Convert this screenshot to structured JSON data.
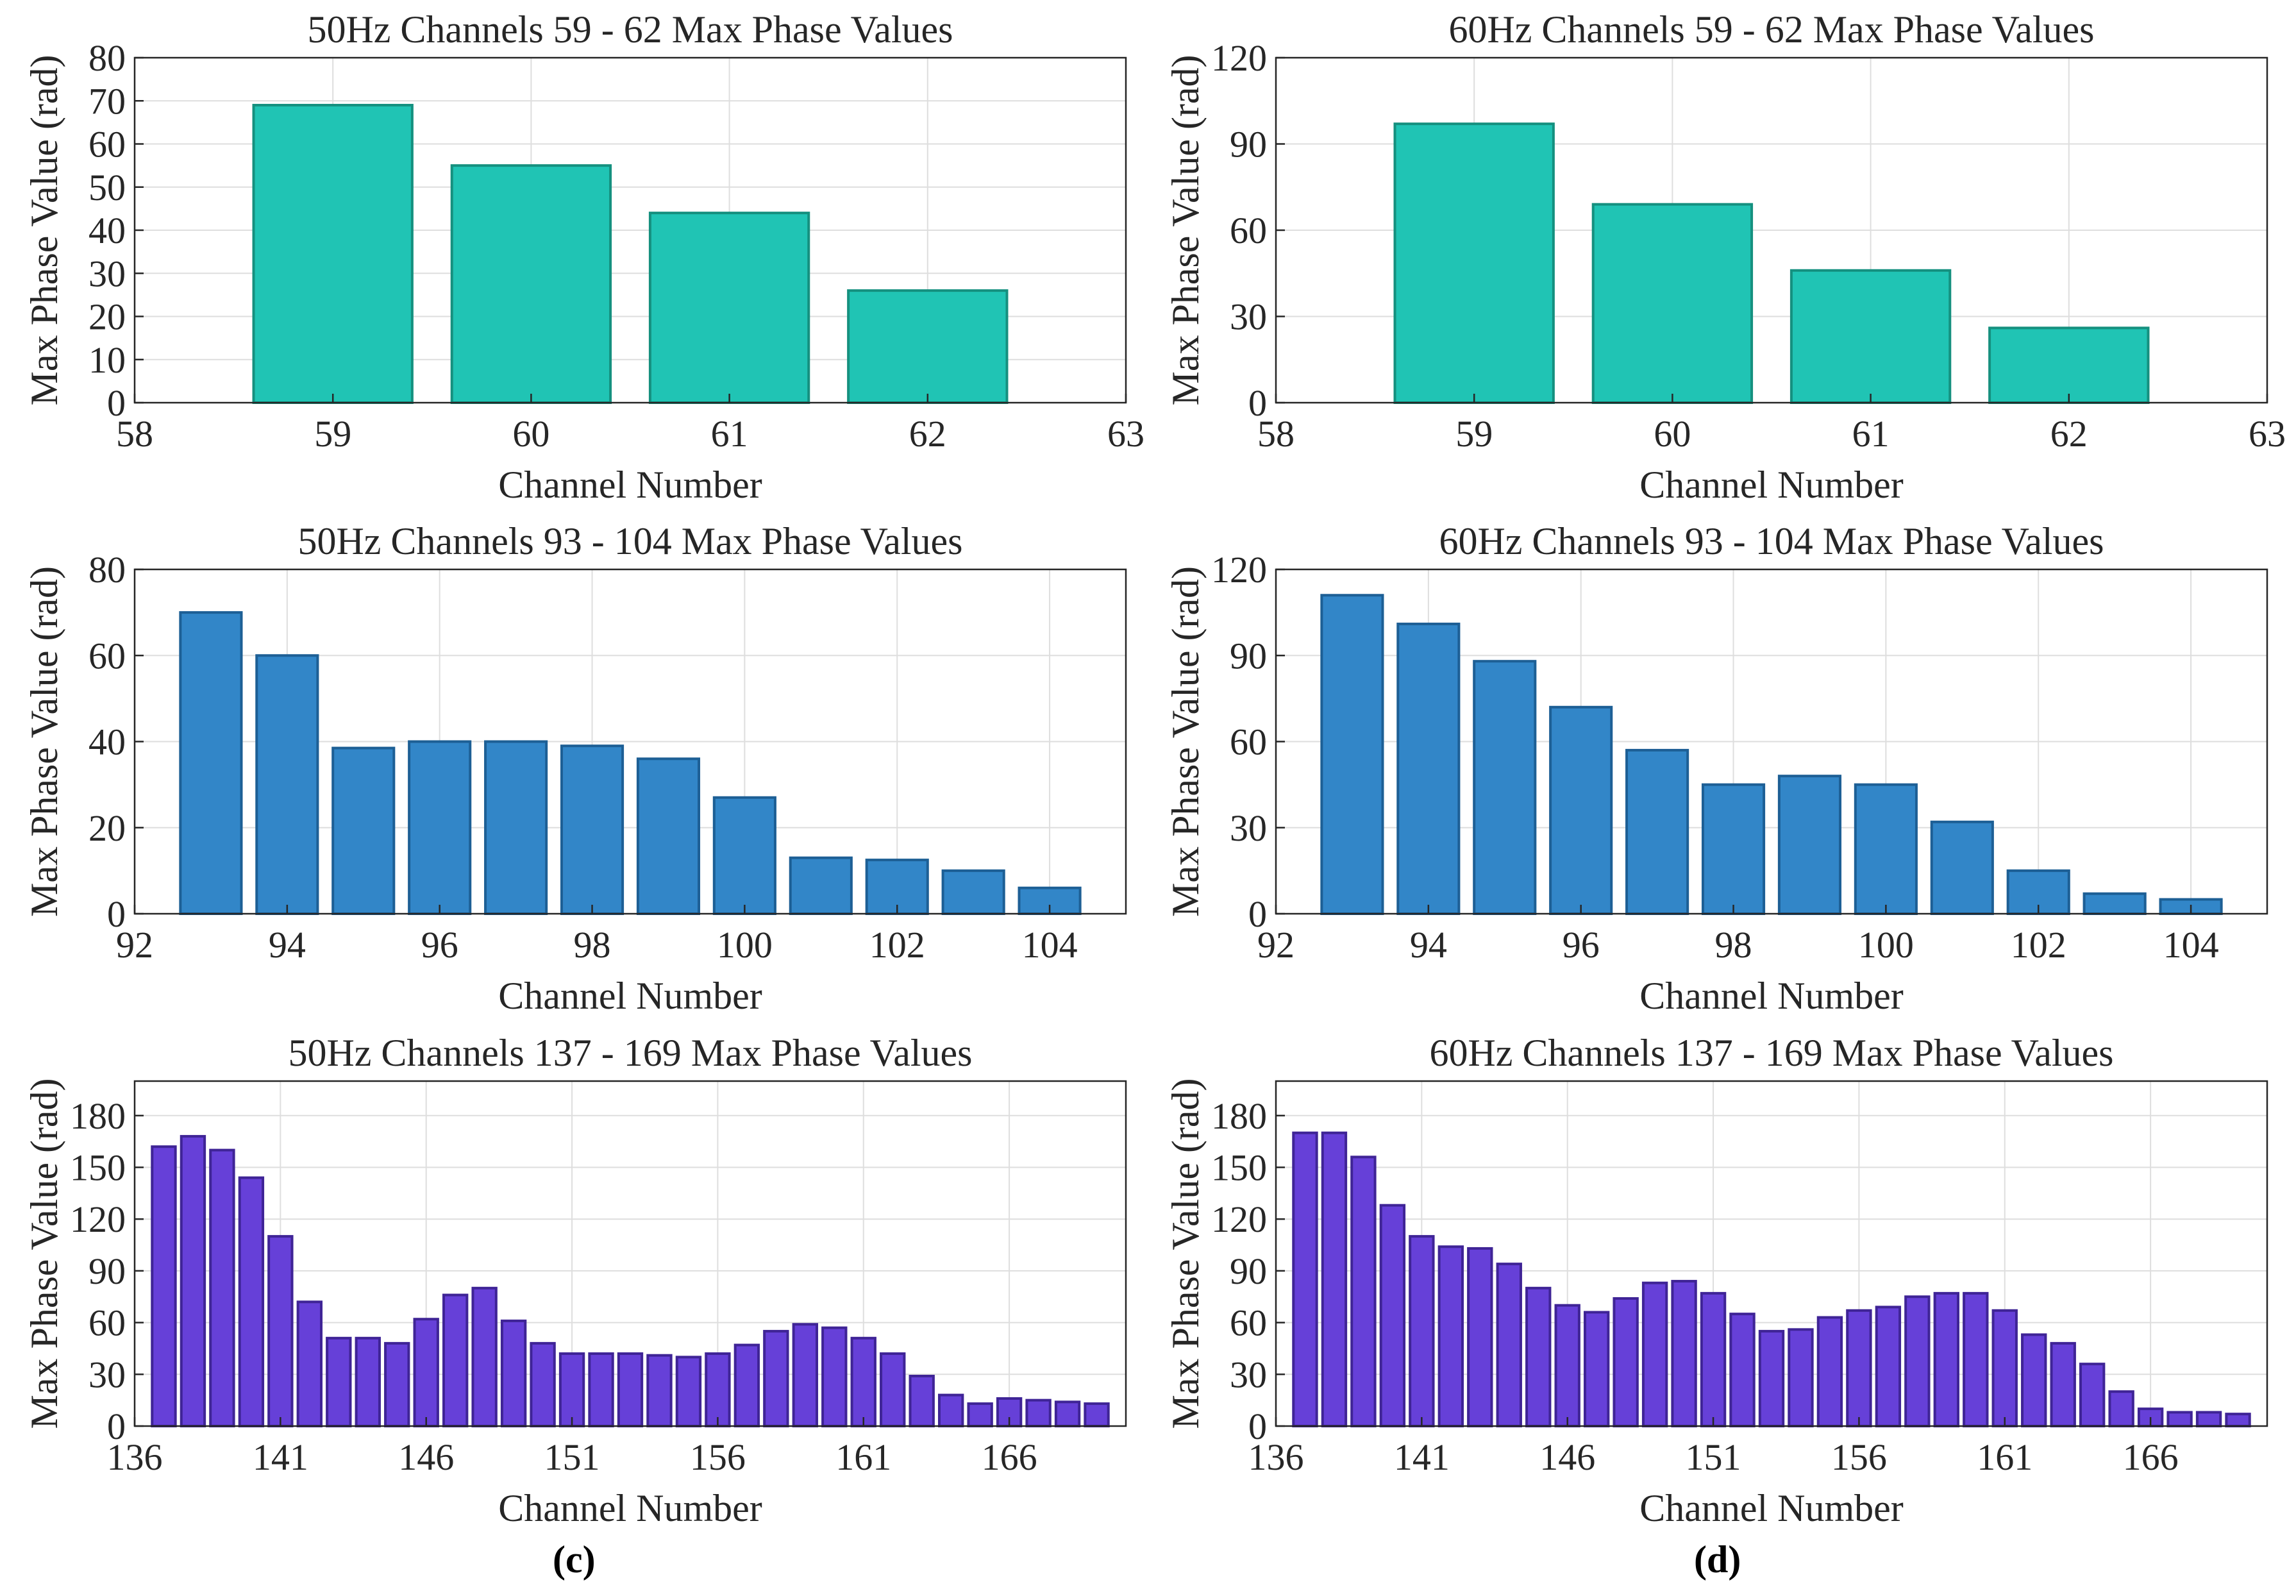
{
  "panel_labels": [
    "(c)",
    "(d)"
  ],
  "chart_data": [
    {
      "type": "bar",
      "title": "50Hz Channels 59 - 62 Max Phase Values",
      "xlabel": "Channel Number",
      "ylabel": "Max Phase Value (rad)",
      "x": [
        59,
        60,
        61,
        62
      ],
      "values": [
        69,
        55,
        44,
        26
      ],
      "xlim": [
        58,
        63
      ],
      "ylim": [
        0,
        80
      ],
      "xticks": [
        58,
        59,
        60,
        61,
        62,
        63
      ],
      "yticks": [
        0,
        10,
        20,
        30,
        40,
        50,
        60,
        70,
        80
      ],
      "grid": true,
      "color": "#20c4b4",
      "edge_color": "#15907f"
    },
    {
      "type": "bar",
      "title": "60Hz Channels 59 - 62 Max Phase Values",
      "xlabel": "Channel Number",
      "ylabel": "Max Phase Value (rad)",
      "x": [
        59,
        60,
        61,
        62
      ],
      "values": [
        97,
        69,
        46,
        26
      ],
      "xlim": [
        58,
        63
      ],
      "ylim": [
        0,
        120
      ],
      "xticks": [
        58,
        59,
        60,
        61,
        62,
        63
      ],
      "yticks": [
        0,
        30,
        60,
        90,
        120
      ],
      "grid": true,
      "color": "#20c4b4",
      "edge_color": "#15907f"
    },
    {
      "type": "bar",
      "title": "50Hz Channels 93 - 104 Max Phase Values",
      "xlabel": "Channel Number",
      "ylabel": "Max Phase Value (rad)",
      "x": [
        93,
        94,
        95,
        96,
        97,
        98,
        99,
        100,
        101,
        102,
        103,
        104
      ],
      "values": [
        70,
        60,
        38.5,
        40,
        40,
        39,
        36,
        27,
        13,
        12.5,
        10,
        6
      ],
      "xlim": [
        92,
        105
      ],
      "ylim": [
        0,
        80
      ],
      "xticks": [
        92,
        94,
        96,
        98,
        100,
        102,
        104
      ],
      "yticks": [
        0,
        20,
        40,
        60,
        80
      ],
      "grid": true,
      "color": "#3286c8",
      "edge_color": "#1d5f95"
    },
    {
      "type": "bar",
      "title": "60Hz Channels 93 - 104 Max Phase Values",
      "xlabel": "Channel Number",
      "ylabel": "Max Phase Value (rad)",
      "x": [
        93,
        94,
        95,
        96,
        97,
        98,
        99,
        100,
        101,
        102,
        103,
        104
      ],
      "values": [
        111,
        101,
        88,
        72,
        57,
        45,
        48,
        45,
        32,
        15,
        7,
        5
      ],
      "xlim": [
        92,
        105
      ],
      "ylim": [
        0,
        120
      ],
      "xticks": [
        92,
        94,
        96,
        98,
        100,
        102,
        104
      ],
      "yticks": [
        0,
        30,
        60,
        90,
        120
      ],
      "grid": true,
      "color": "#3286c8",
      "edge_color": "#1d5f95"
    },
    {
      "type": "bar",
      "title": "50Hz Channels 137 - 169 Max Phase Values",
      "xlabel": "Channel Number",
      "ylabel": "Max Phase Value (rad)",
      "x": [
        137,
        138,
        139,
        140,
        141,
        142,
        143,
        144,
        145,
        146,
        147,
        148,
        149,
        150,
        151,
        152,
        153,
        154,
        155,
        156,
        157,
        158,
        159,
        160,
        161,
        162,
        163,
        164,
        165,
        166,
        167,
        168,
        169
      ],
      "values": [
        162,
        168,
        160,
        144,
        110,
        72,
        51,
        51,
        48,
        62,
        76,
        80,
        61,
        48,
        42,
        42,
        42,
        41,
        40,
        42,
        47,
        55,
        59,
        57,
        51,
        42,
        29,
        18,
        13,
        16,
        15,
        14,
        13
      ],
      "xlim": [
        136,
        170
      ],
      "ylim": [
        0,
        200
      ],
      "xticks": [
        136,
        141,
        146,
        151,
        156,
        161,
        166
      ],
      "yticks": [
        0,
        30,
        60,
        90,
        120,
        150,
        180
      ],
      "grid": true,
      "color": "#6640d8",
      "edge_color": "#3f2496"
    },
    {
      "type": "bar",
      "title": "60Hz Channels 137 - 169 Max Phase Values",
      "xlabel": "Channel Number",
      "ylabel": "Max Phase Value (rad)",
      "x": [
        137,
        138,
        139,
        140,
        141,
        142,
        143,
        144,
        145,
        146,
        147,
        148,
        149,
        150,
        151,
        152,
        153,
        154,
        155,
        156,
        157,
        158,
        159,
        160,
        161,
        162,
        163,
        164,
        165,
        166,
        167,
        168,
        169
      ],
      "values": [
        170,
        170,
        156,
        128,
        110,
        104,
        103,
        94,
        80,
        70,
        66,
        74,
        83,
        84,
        77,
        65,
        55,
        56,
        63,
        67,
        69,
        75,
        77,
        77,
        67,
        53,
        48,
        36,
        20,
        10,
        8,
        8,
        7
      ],
      "xlim": [
        136,
        170
      ],
      "ylim": [
        0,
        200
      ],
      "xticks": [
        136,
        141,
        146,
        151,
        156,
        161,
        166
      ],
      "yticks": [
        0,
        30,
        60,
        90,
        120,
        150,
        180
      ],
      "grid": true,
      "color": "#6640d8",
      "edge_color": "#3f2496"
    }
  ]
}
